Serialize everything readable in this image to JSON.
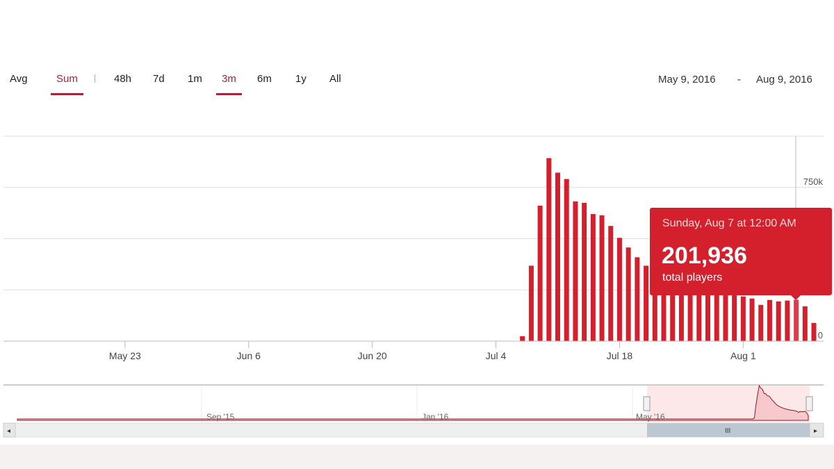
{
  "toolbar": {
    "modes": [
      {
        "label": "Avg",
        "active": false
      },
      {
        "label": "Sum",
        "active": true
      }
    ],
    "ranges": [
      {
        "label": "48h",
        "active": false
      },
      {
        "label": "7d",
        "active": false
      },
      {
        "label": "1m",
        "active": false
      },
      {
        "label": "3m",
        "active": true
      },
      {
        "label": "6m",
        "active": false
      },
      {
        "label": "1y",
        "active": false
      },
      {
        "label": "All",
        "active": false
      }
    ],
    "date_from": "May 9, 2016",
    "date_sep": "-",
    "date_to": "Aug 9, 2016"
  },
  "tooltip": {
    "date": "Sunday, Aug 7 at 12:00 AM",
    "value": "201,936",
    "label": "total players"
  },
  "colors": {
    "bar": "#d41f2c",
    "accent": "#a3243b",
    "navigator_fill": "#f7c9cc",
    "selection": "#fde8e9",
    "scroll_thumb": "#bcc7d1"
  },
  "navigator": {
    "labels": [
      "Sep '15",
      "Jan '16",
      "May '16"
    ]
  },
  "chart_data": {
    "type": "bar",
    "xlim": [
      "2016-05-09",
      "2016-08-09"
    ],
    "ylim": [
      0,
      1000000
    ],
    "y_ticks": [
      {
        "value": 0,
        "label": "0"
      },
      {
        "value": 750000,
        "label": "750k"
      }
    ],
    "x_ticks": [
      "May 23",
      "Jun 6",
      "Jun 20",
      "Jul 4",
      "Jul 18",
      "Aug 1"
    ],
    "grid": true,
    "highlighted": "2016-08-07",
    "x": [
      "2016-07-07",
      "2016-07-08",
      "2016-07-09",
      "2016-07-10",
      "2016-07-11",
      "2016-07-12",
      "2016-07-13",
      "2016-07-14",
      "2016-07-15",
      "2016-07-16",
      "2016-07-17",
      "2016-07-18",
      "2016-07-19",
      "2016-07-20",
      "2016-07-21",
      "2016-07-22",
      "2016-07-23",
      "2016-07-24",
      "2016-07-25",
      "2016-07-26",
      "2016-07-27",
      "2016-07-28",
      "2016-07-29",
      "2016-07-30",
      "2016-07-31",
      "2016-08-01",
      "2016-08-02",
      "2016-08-03",
      "2016-08-04",
      "2016-08-05",
      "2016-08-06",
      "2016-08-07",
      "2016-08-08",
      "2016-08-09"
    ],
    "values": [
      24000,
      368000,
      661000,
      893000,
      822000,
      791000,
      682000,
      675000,
      620000,
      614000,
      562000,
      504000,
      457000,
      409000,
      368000,
      340000,
      320000,
      300000,
      285000,
      270000,
      260000,
      250000,
      240000,
      232000,
      225000,
      218000,
      208000,
      177000,
      201000,
      194000,
      198000,
      201936,
      170000,
      89000
    ]
  }
}
